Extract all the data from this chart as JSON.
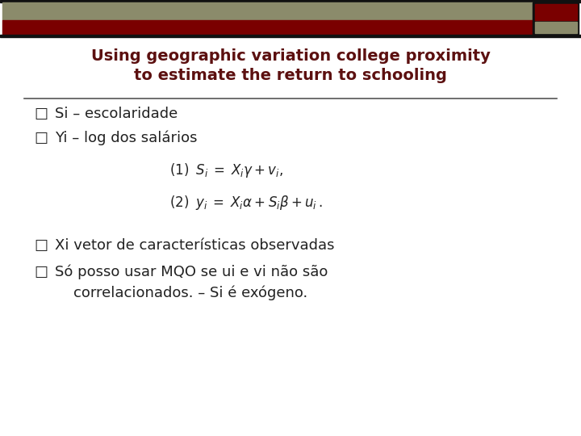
{
  "title_line1": "Using geographic variation college proximity",
  "title_line2": "to estimate the return to schooling",
  "title_color": "#5C1010",
  "title_fontsize": 14,
  "header_bar_color1": "#8B8B6B",
  "header_bar_color2": "#7A0000",
  "header_outer_color": "#111111",
  "separator_color": "#555555",
  "bullet_color": "#222222",
  "bullet_char": "□",
  "bullet_items": [
    "Si – escolaridade",
    "Yi – log dos salários"
  ],
  "bullet_items2": [
    "Xi vetor de características observadas",
    "Só posso usar MQO se ui e vi não são"
  ],
  "bullet_item2_line2": "    correlacionados. – Si é exógeno.",
  "text_fontsize": 13,
  "eq_fontsize": 12,
  "bg_color": "#FFFFFF"
}
